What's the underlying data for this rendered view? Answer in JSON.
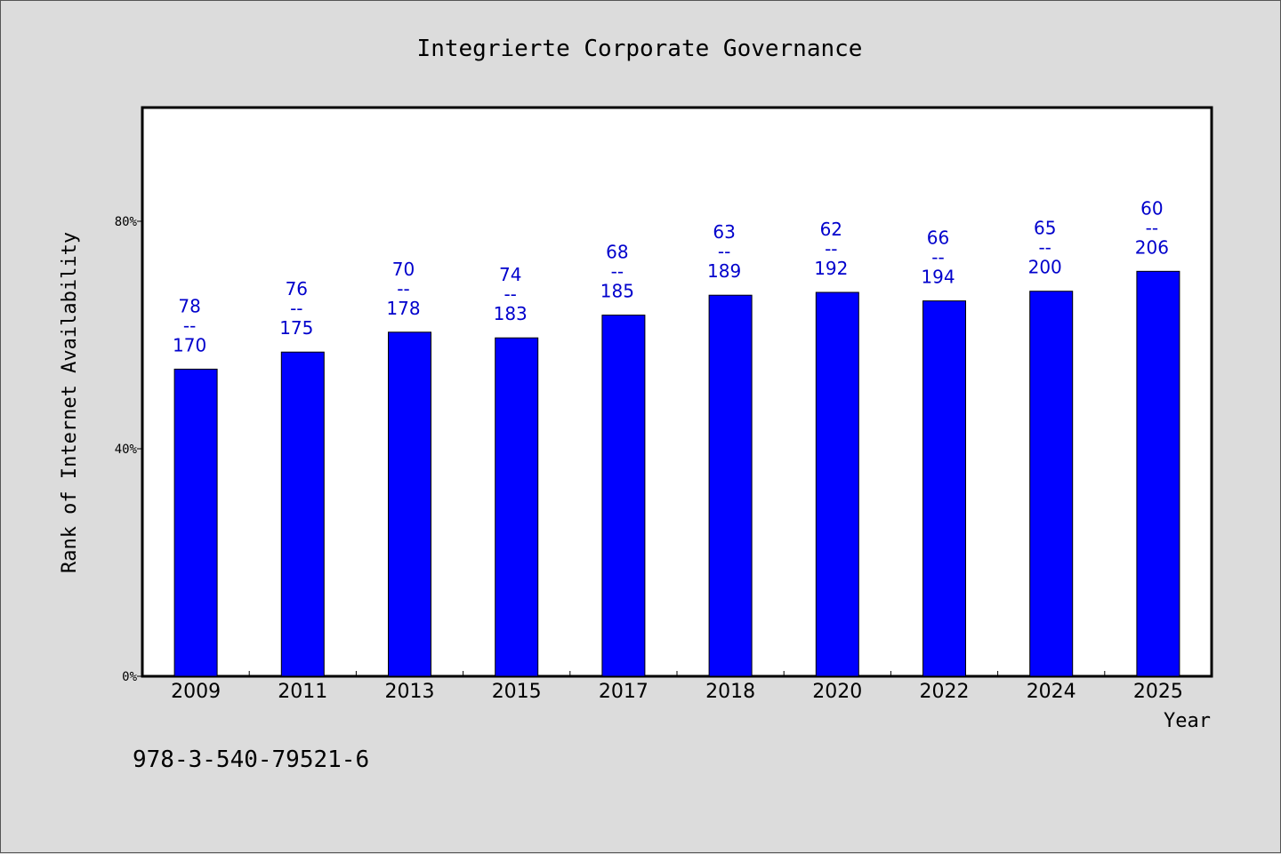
{
  "chart_data": {
    "type": "bar",
    "title": "Integrierte Corporate Governance",
    "xlabel": "Year",
    "ylabel": "Rank of Internet Availability",
    "categories": [
      "2009",
      "2011",
      "2013",
      "2015",
      "2017",
      "2018",
      "2020",
      "2022",
      "2024",
      "2025"
    ],
    "values": [
      54,
      57,
      60.5,
      59.5,
      63.5,
      67,
      67.5,
      66,
      67.7,
      71.2
    ],
    "data_labels": [
      [
        "78",
        "--",
        "170"
      ],
      [
        "76",
        "--",
        "175"
      ],
      [
        "70",
        "--",
        "178"
      ],
      [
        "74",
        "--",
        "183"
      ],
      [
        "68",
        "--",
        "185"
      ],
      [
        "63",
        "--",
        "189"
      ],
      [
        "62",
        "--",
        "192"
      ],
      [
        "66",
        "--",
        "194"
      ],
      [
        "65",
        "--",
        "200"
      ],
      [
        "60",
        "--",
        "206"
      ]
    ],
    "ylim": [
      0,
      100
    ],
    "yticks": [
      0,
      40,
      80
    ],
    "ytick_labels": [
      "0%",
      "40%",
      "80%"
    ],
    "grid": false,
    "colors": {
      "bar": "#0000ff",
      "label": "#0000cc",
      "plot_bg": "#ffffff",
      "page_bg": "#dcdcdc"
    }
  },
  "footer": {
    "isbn": "978-3-540-79521-6"
  }
}
